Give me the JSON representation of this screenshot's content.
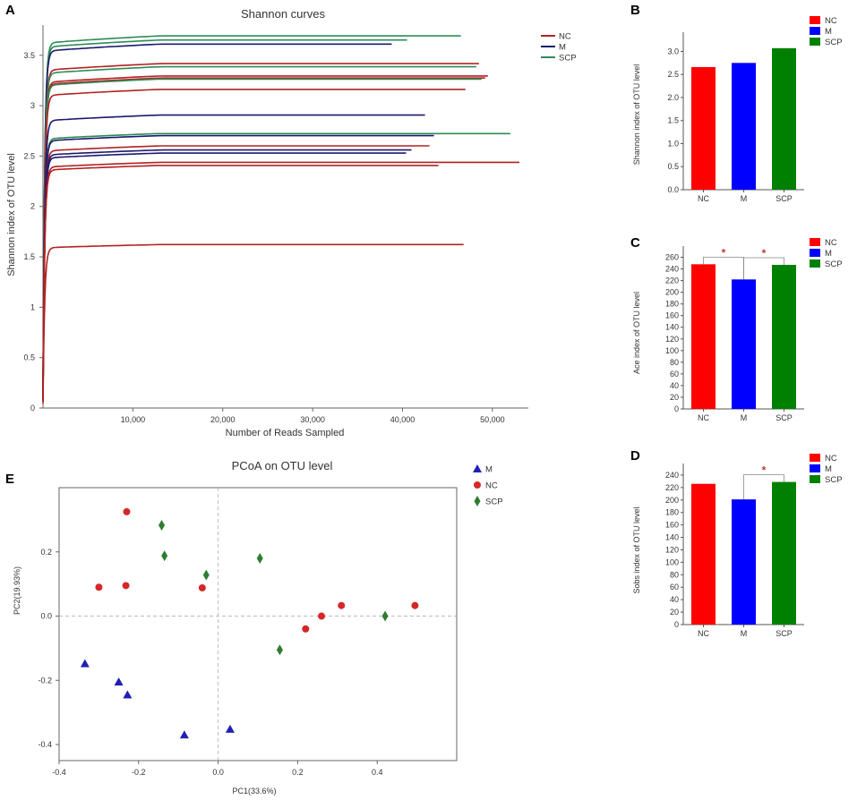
{
  "panel_labels": {
    "a": "A",
    "b": "B",
    "c": "C",
    "d": "D",
    "e": "E"
  },
  "colors": {
    "NC": "#ff0000",
    "M": "#0000ff",
    "SCP": "#008000",
    "NC_line": "#b22222",
    "M_line": "#1a1a6e",
    "SCP_line": "#2e8b57",
    "pcoa_NC": "#d62728",
    "pcoa_M": "#1f1fb4",
    "pcoa_SCP": "#2e7d32",
    "sig": "#c0392b"
  },
  "chart_data": [
    {
      "id": "A",
      "type": "line",
      "title": "Shannon curves",
      "xlabel": "Number of Reads Sampled",
      "ylabel": "Shannon index of OTU level",
      "xlim": [
        0,
        54000
      ],
      "ylim": [
        0,
        3.8
      ],
      "xticks": [
        10000,
        20000,
        30000,
        40000,
        50000
      ],
      "xtick_labels": [
        "10,000",
        "20,000",
        "30,000",
        "40,000",
        "50,000"
      ],
      "yticks": [
        0,
        0.5,
        1,
        1.5,
        2,
        2.5,
        3,
        3.5
      ],
      "ytick_labels": [
        "0",
        "0.5",
        "1",
        "1.5",
        "2",
        "2.5",
        "3",
        "3.5"
      ],
      "legend": [
        "NC",
        "M",
        "SCP"
      ],
      "series": [
        {
          "group": "SCP",
          "plateau": 3.62,
          "xmax": 46500
        },
        {
          "group": "SCP",
          "plateau": 3.58,
          "xmax": 40500
        },
        {
          "group": "M",
          "plateau": 3.54,
          "xmax": 38800
        },
        {
          "group": "NC",
          "plateau": 3.35,
          "xmax": 48500
        },
        {
          "group": "SCP",
          "plateau": 3.32,
          "xmax": 48200
        },
        {
          "group": "NC",
          "plateau": 3.23,
          "xmax": 49500
        },
        {
          "group": "NC",
          "plateau": 3.21,
          "xmax": 49200
        },
        {
          "group": "SCP",
          "plateau": 3.2,
          "xmax": 48800
        },
        {
          "group": "NC",
          "plateau": 3.1,
          "xmax": 47000
        },
        {
          "group": "M",
          "plateau": 2.85,
          "xmax": 42500
        },
        {
          "group": "SCP",
          "plateau": 2.67,
          "xmax": 52000
        },
        {
          "group": "M",
          "plateau": 2.65,
          "xmax": 43500
        },
        {
          "group": "NC",
          "plateau": 2.55,
          "xmax": 43000
        },
        {
          "group": "M",
          "plateau": 2.51,
          "xmax": 41000
        },
        {
          "group": "M",
          "plateau": 2.48,
          "xmax": 40400
        },
        {
          "group": "NC",
          "plateau": 2.39,
          "xmax": 53000
        },
        {
          "group": "NC",
          "plateau": 2.36,
          "xmax": 44000
        },
        {
          "group": "NC",
          "plateau": 1.59,
          "xmax": 46800
        }
      ]
    },
    {
      "id": "B",
      "type": "bar",
      "ylabel": "Shannon index of OTU level",
      "categories": [
        "NC",
        "M",
        "SCP"
      ],
      "values": [
        2.66,
        2.75,
        3.07
      ],
      "ylim": [
        0,
        3.3
      ],
      "yticks": [
        0,
        0.5,
        1,
        1.5,
        2,
        2.5,
        3
      ],
      "ytick_labels": [
        "0.0",
        "0.5",
        "1.0",
        "1.5",
        "2.0",
        "2.5",
        "3.0"
      ],
      "legend": [
        "NC",
        "M",
        "SCP"
      ],
      "significance": []
    },
    {
      "id": "C",
      "type": "bar",
      "ylabel": "Ace index of OTU level",
      "categories": [
        "NC",
        "M",
        "SCP"
      ],
      "values": [
        248,
        222,
        247
      ],
      "ylim": [
        0,
        270
      ],
      "yticks": [
        0,
        20,
        40,
        60,
        80,
        100,
        120,
        140,
        160,
        180,
        200,
        220,
        240,
        260
      ],
      "ytick_labels": [
        "0",
        "20",
        "40",
        "60",
        "80",
        "100",
        "120",
        "140",
        "160",
        "180",
        "200",
        "220",
        "240",
        "260"
      ],
      "legend": [
        "NC",
        "M",
        "SCP"
      ],
      "significance": [
        {
          "from": 0,
          "to": 1,
          "label": "*"
        },
        {
          "from": 1,
          "to": 2,
          "label": "*"
        }
      ]
    },
    {
      "id": "D",
      "type": "bar",
      "ylabel": "Sobs index of OTU level",
      "categories": [
        "NC",
        "M",
        "SCP"
      ],
      "values": [
        226,
        201,
        229
      ],
      "ylim": [
        0,
        250
      ],
      "yticks": [
        0,
        20,
        40,
        60,
        80,
        100,
        120,
        140,
        160,
        180,
        200,
        220,
        240
      ],
      "ytick_labels": [
        "0",
        "20",
        "40",
        "60",
        "80",
        "100",
        "120",
        "140",
        "160",
        "180",
        "200",
        "220",
        "240"
      ],
      "legend": [
        "NC",
        "M",
        "SCP"
      ],
      "significance": [
        {
          "from": 1,
          "to": 2,
          "label": "*"
        }
      ]
    },
    {
      "id": "E",
      "type": "scatter",
      "title": "PCoA on OTU level",
      "xlabel": "PC1(33.6%)",
      "ylabel": "PC2(19.93%)",
      "xlim": [
        -0.4,
        0.6
      ],
      "ylim": [
        -0.45,
        0.4
      ],
      "xticks": [
        -0.4,
        -0.2,
        0,
        0.2,
        0.4
      ],
      "xtick_labels": [
        "-0.4",
        "-0.2",
        "0.0",
        "0.2",
        "0.4"
      ],
      "yticks": [
        0.2,
        0.0,
        -0.2,
        -0.4
      ],
      "ytick_labels": [
        "0.2",
        "0.0",
        "-0.2",
        "-0.4"
      ],
      "legend": [
        "M",
        "NC",
        "SCP"
      ],
      "series": [
        {
          "name": "M",
          "marker": "triangle",
          "points": [
            [
              -0.335,
              -0.148
            ],
            [
              -0.25,
              -0.205
            ],
            [
              -0.228,
              -0.245
            ],
            [
              -0.085,
              -0.37
            ],
            [
              0.03,
              -0.352
            ]
          ]
        },
        {
          "name": "NC",
          "marker": "circle",
          "points": [
            [
              -0.23,
              0.325
            ],
            [
              -0.3,
              0.09
            ],
            [
              -0.232,
              0.095
            ],
            [
              -0.04,
              0.088
            ],
            [
              0.22,
              -0.04
            ],
            [
              0.26,
              0.0
            ],
            [
              0.31,
              0.033
            ],
            [
              0.495,
              0.033
            ]
          ]
        },
        {
          "name": "SCP",
          "marker": "diamond",
          "points": [
            [
              -0.142,
              0.283
            ],
            [
              -0.135,
              0.188
            ],
            [
              -0.03,
              0.128
            ],
            [
              0.105,
              0.18
            ],
            [
              0.155,
              -0.105
            ],
            [
              0.42,
              0.0
            ]
          ]
        }
      ]
    }
  ]
}
